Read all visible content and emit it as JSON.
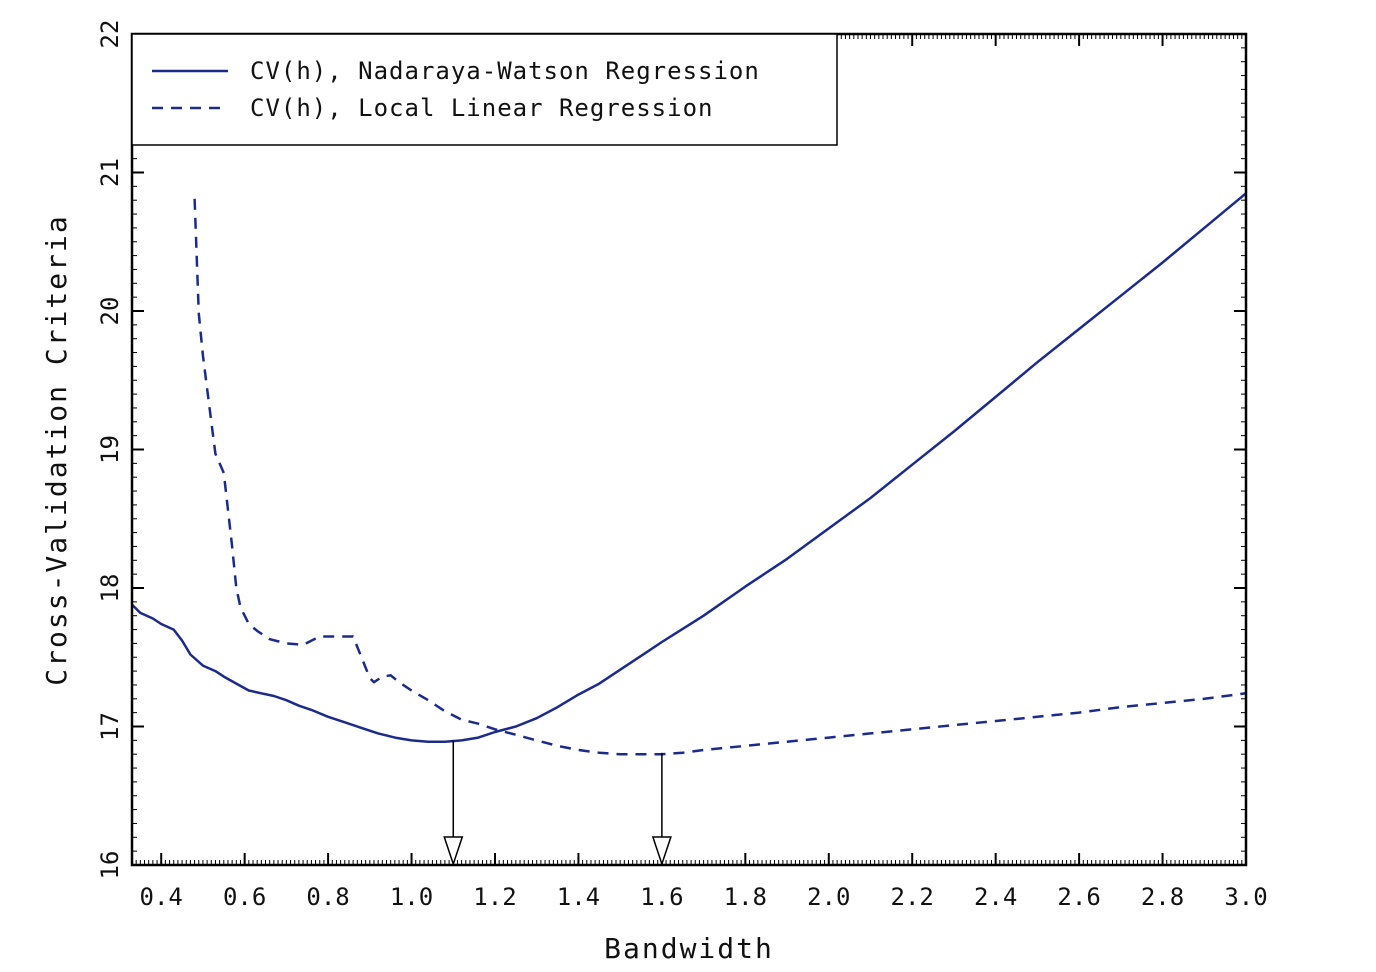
{
  "chart_data": {
    "type": "line",
    "xlabel": "Bandwidth",
    "ylabel": "Cross-Validation Criteria",
    "xlim": [
      0.33,
      3.0
    ],
    "ylim": [
      16,
      22
    ],
    "x_ticks": [
      "0.4",
      "0.6",
      "0.8",
      "1.0",
      "1.2",
      "1.4",
      "1.6",
      "1.8",
      "2.0",
      "2.2",
      "2.4",
      "2.6",
      "2.8",
      "3.0"
    ],
    "y_ticks": [
      "16",
      "17",
      "18",
      "19",
      "20",
      "21",
      "22"
    ],
    "grid": false,
    "legend_position": "top-left",
    "series": [
      {
        "name": "CV(h), Nadaraya-Watson Regression",
        "style": "solid",
        "color": "#1c2a8c",
        "x": [
          0.33,
          0.35,
          0.38,
          0.4,
          0.43,
          0.45,
          0.47,
          0.5,
          0.53,
          0.55,
          0.58,
          0.61,
          0.64,
          0.67,
          0.7,
          0.73,
          0.76,
          0.8,
          0.84,
          0.88,
          0.92,
          0.96,
          1.0,
          1.04,
          1.08,
          1.12,
          1.16,
          1.2,
          1.25,
          1.3,
          1.35,
          1.4,
          1.45,
          1.5,
          1.55,
          1.6,
          1.7,
          1.8,
          1.9,
          2.0,
          2.1,
          2.2,
          2.3,
          2.4,
          2.5,
          2.6,
          2.7,
          2.8,
          2.9,
          3.0
        ],
        "y": [
          17.88,
          17.82,
          17.78,
          17.74,
          17.7,
          17.62,
          17.52,
          17.44,
          17.4,
          17.36,
          17.31,
          17.26,
          17.24,
          17.22,
          17.19,
          17.15,
          17.12,
          17.07,
          17.03,
          16.99,
          16.95,
          16.92,
          16.9,
          16.89,
          16.89,
          16.9,
          16.92,
          16.96,
          17.0,
          17.06,
          17.14,
          17.23,
          17.31,
          17.41,
          17.51,
          17.61,
          17.8,
          18.01,
          18.21,
          18.43,
          18.65,
          18.89,
          19.13,
          19.38,
          19.63,
          19.87,
          20.11,
          20.35,
          20.6,
          20.85
        ]
      },
      {
        "name": "CV(h), Local Linear Regression",
        "style": "dashed",
        "color": "#1c2a8c",
        "x": [
          0.48,
          0.49,
          0.5,
          0.52,
          0.53,
          0.55,
          0.57,
          0.58,
          0.59,
          0.6,
          0.61,
          0.63,
          0.66,
          0.7,
          0.74,
          0.78,
          0.82,
          0.86,
          0.9,
          0.91,
          0.93,
          0.95,
          0.97,
          1.0,
          1.04,
          1.08,
          1.12,
          1.16,
          1.2,
          1.25,
          1.3,
          1.35,
          1.4,
          1.45,
          1.5,
          1.55,
          1.6,
          1.65,
          1.7,
          1.8,
          1.9,
          2.0,
          2.1,
          2.2,
          2.3,
          2.4,
          2.5,
          2.6,
          2.7,
          2.8,
          2.9,
          3.0
        ],
        "y": [
          20.81,
          19.98,
          19.68,
          19.2,
          18.97,
          18.83,
          18.3,
          18.0,
          17.86,
          17.8,
          17.74,
          17.69,
          17.63,
          17.6,
          17.59,
          17.65,
          17.65,
          17.65,
          17.35,
          17.32,
          17.36,
          17.37,
          17.32,
          17.26,
          17.19,
          17.11,
          17.05,
          17.02,
          16.98,
          16.94,
          16.9,
          16.86,
          16.83,
          16.81,
          16.8,
          16.8,
          16.8,
          16.81,
          16.83,
          16.86,
          16.89,
          16.92,
          16.95,
          16.98,
          17.01,
          17.04,
          17.07,
          17.1,
          17.14,
          17.17,
          17.2,
          17.24
        ]
      }
    ],
    "annotations": [
      {
        "type": "arrow-down",
        "x": 1.1,
        "from_y": 16.9
      },
      {
        "type": "arrow-down",
        "x": 1.6,
        "from_y": 16.81
      }
    ]
  }
}
